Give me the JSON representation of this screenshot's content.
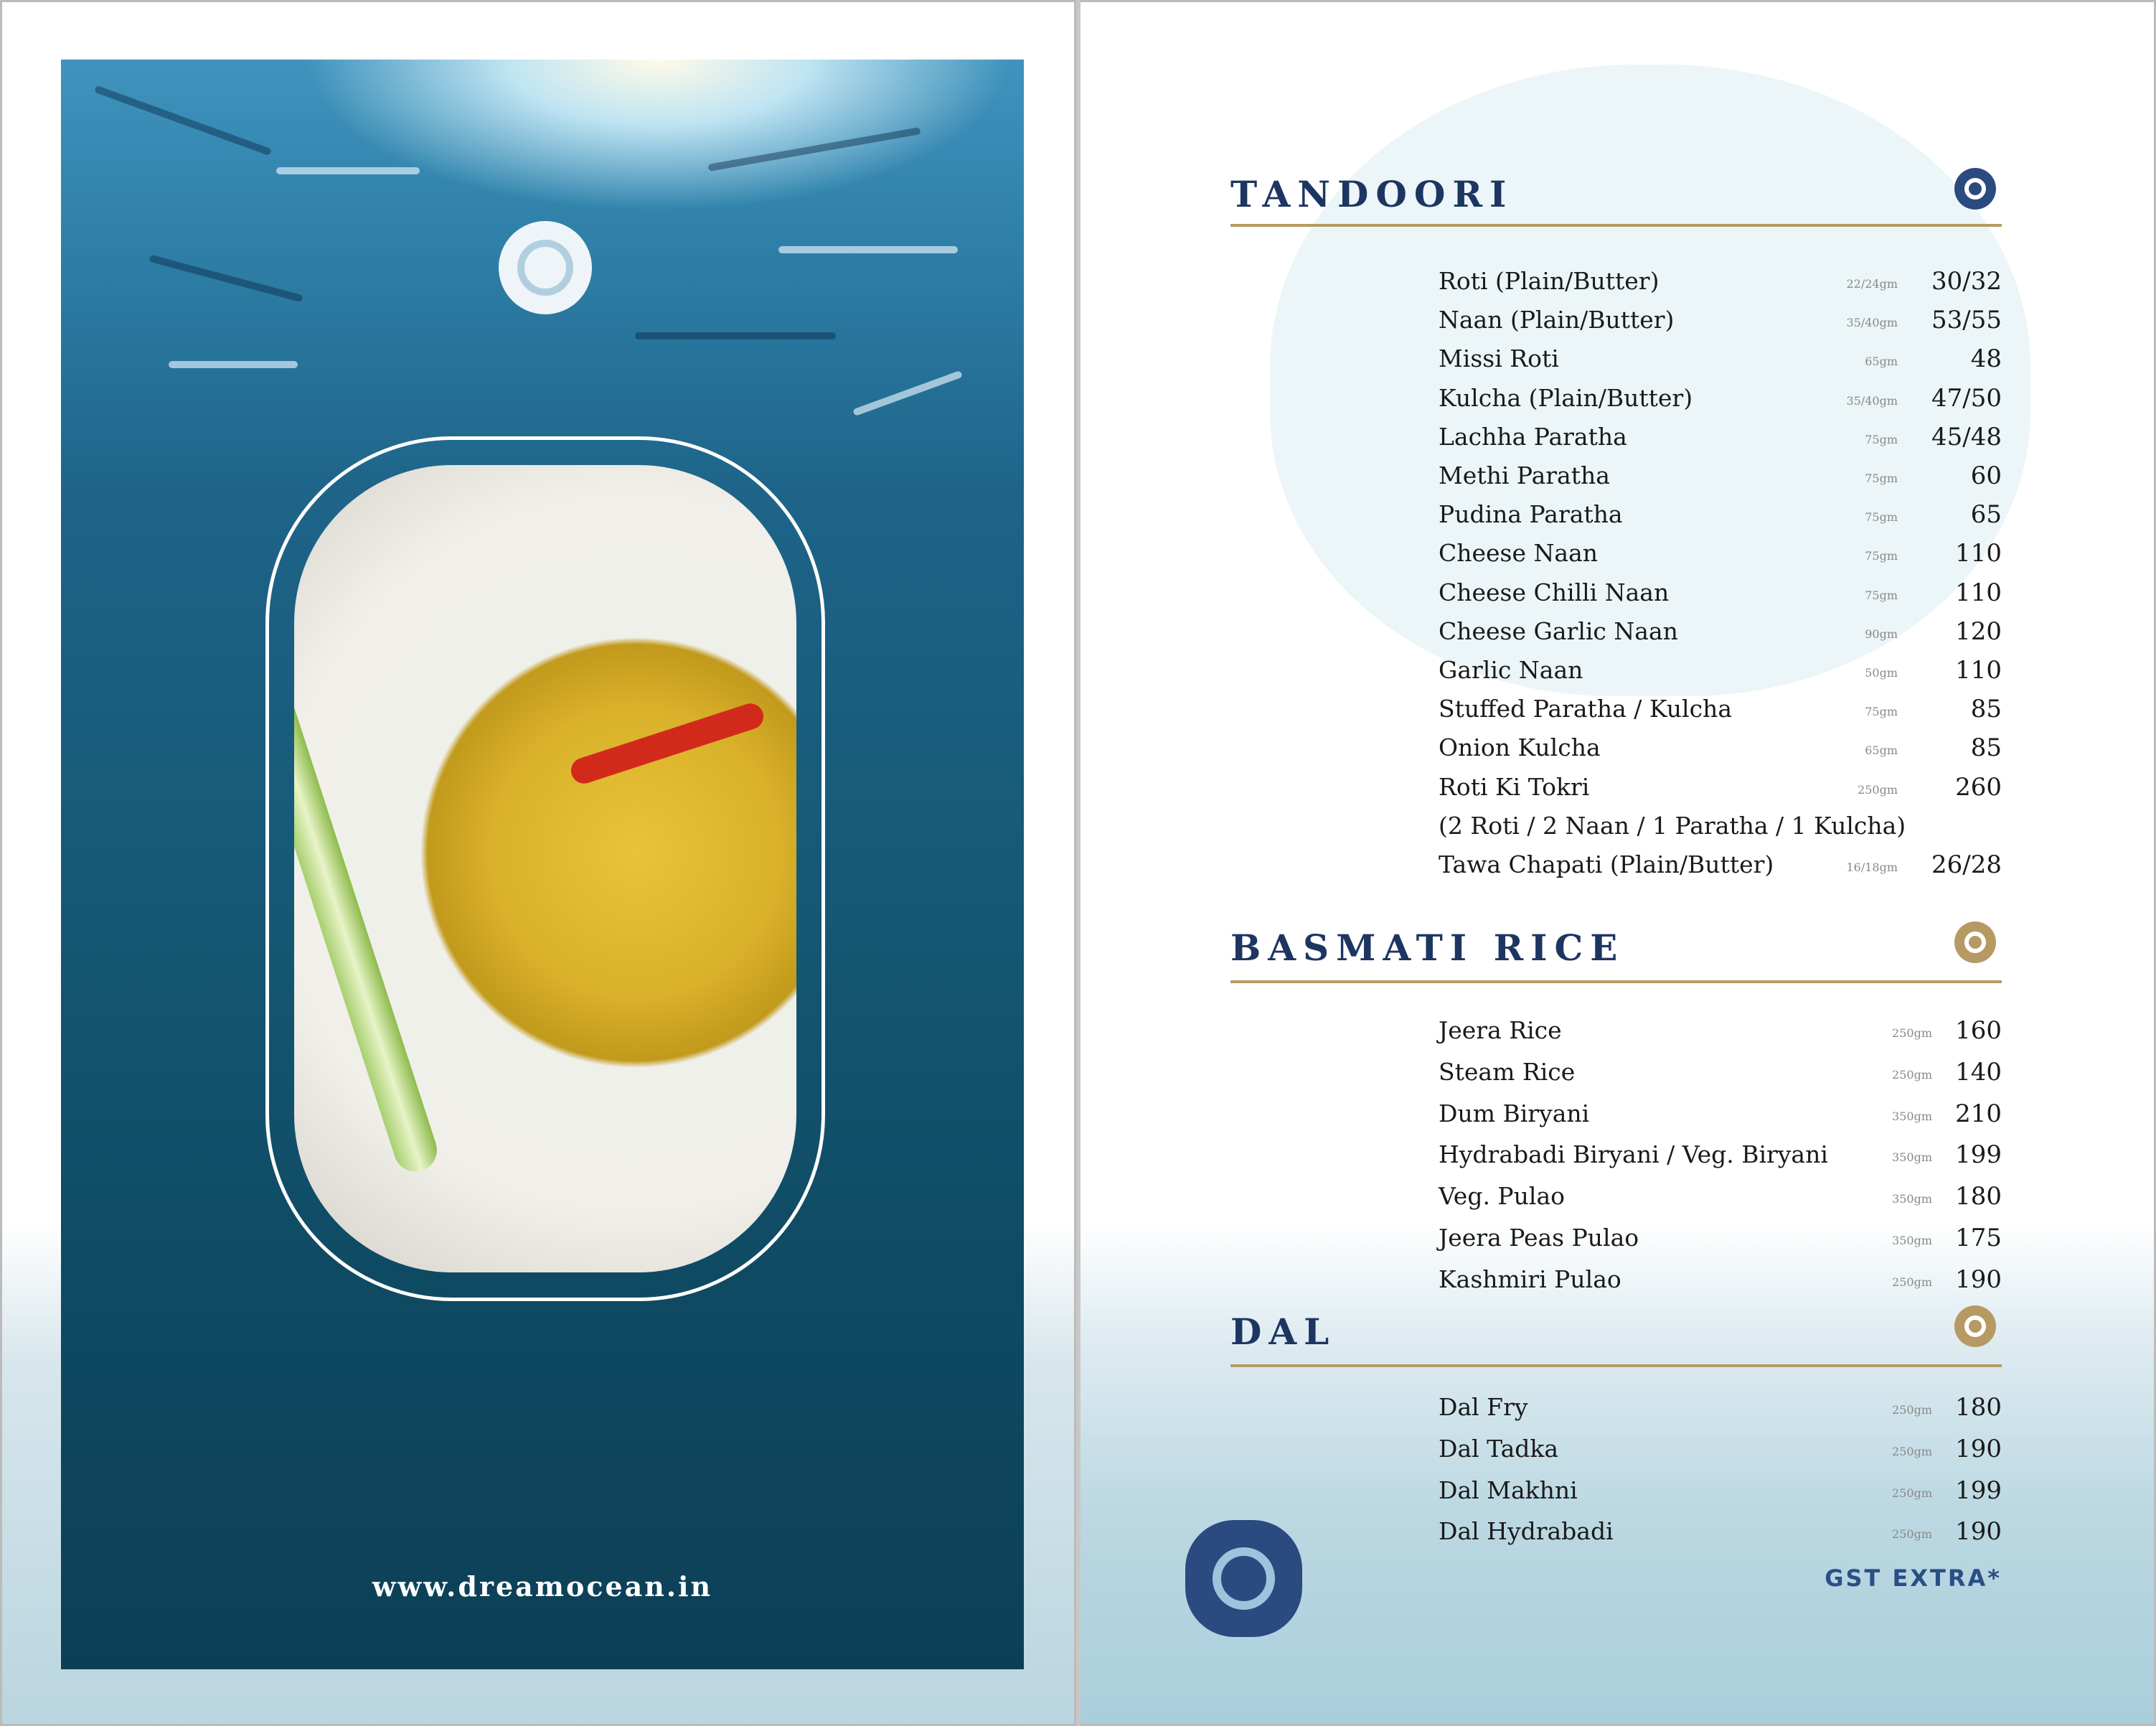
{
  "left": {
    "website": "www.dreamocean.in"
  },
  "colors": {
    "navy": "#1d3561",
    "gold": "#b79a63",
    "ocean": "#155774"
  },
  "sections": [
    {
      "title": "TANDOORI",
      "icon": "logo-icon-navy",
      "items": [
        {
          "name": "Roti (Plain/Butter)",
          "weight": "22/24gm",
          "price": "30/32"
        },
        {
          "name": "Naan (Plain/Butter)",
          "weight": "35/40gm",
          "price": "53/55"
        },
        {
          "name": "Missi Roti",
          "weight": "65gm",
          "price": "48"
        },
        {
          "name": "Kulcha (Plain/Butter)",
          "weight": "35/40gm",
          "price": "47/50"
        },
        {
          "name": "Lachha Paratha",
          "weight": "75gm",
          "price": "45/48"
        },
        {
          "name": "Methi Paratha",
          "weight": "75gm",
          "price": "60"
        },
        {
          "name": "Pudina Paratha",
          "weight": "75gm",
          "price": "65"
        },
        {
          "name": "Cheese Naan",
          "weight": "75gm",
          "price": "110"
        },
        {
          "name": "Cheese Chilli Naan",
          "weight": "75gm",
          "price": "110"
        },
        {
          "name": "Cheese Garlic Naan",
          "weight": "90gm",
          "price": "120"
        },
        {
          "name": "Garlic Naan",
          "weight": "50gm",
          "price": "110"
        },
        {
          "name": "Stuffed Paratha / Kulcha",
          "weight": "75gm",
          "price": "85"
        },
        {
          "name": "Onion Kulcha",
          "weight": "65gm",
          "price": "85"
        },
        {
          "name": "Roti Ki Tokri",
          "weight": "250gm",
          "price": "260"
        },
        {
          "name": "(2 Roti / 2 Naan / 1 Paratha / 1 Kulcha)",
          "weight": "",
          "price": ""
        },
        {
          "name": "Tawa Chapati (Plain/Butter)",
          "weight": "16/18gm",
          "price": "26/28"
        }
      ]
    },
    {
      "title": "BASMATI RICE",
      "icon": "logo-icon-gold",
      "items": [
        {
          "name": "Jeera Rice",
          "weight": "250gm",
          "price": "160"
        },
        {
          "name": "Steam Rice",
          "weight": "250gm",
          "price": "140"
        },
        {
          "name": "Dum Biryani",
          "weight": "350gm",
          "price": "210"
        },
        {
          "name": "Hydrabadi Biryani  /  Veg. Biryani",
          "weight": "350gm",
          "price": "199"
        },
        {
          "name": "Veg. Pulao",
          "weight": "350gm",
          "price": "180"
        },
        {
          "name": "Jeera Peas Pulao",
          "weight": "350gm",
          "price": "175"
        },
        {
          "name": "Kashmiri Pulao",
          "weight": "250gm",
          "price": "190"
        }
      ]
    },
    {
      "title": "DAL",
      "icon": "logo-icon-gold",
      "items": [
        {
          "name": "Dal Fry",
          "weight": "250gm",
          "price": "180"
        },
        {
          "name": "Dal Tadka",
          "weight": "250gm",
          "price": "190"
        },
        {
          "name": "Dal Makhni",
          "weight": "250gm",
          "price": "199"
        },
        {
          "name": "Dal Hydrabadi",
          "weight": "250gm",
          "price": "190"
        }
      ]
    }
  ],
  "footer": {
    "gst": "GST EXTRA*"
  }
}
